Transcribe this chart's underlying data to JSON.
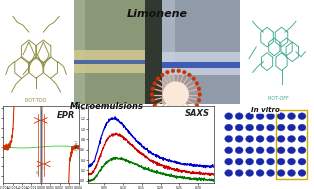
{
  "title_text": "Limonene",
  "microemulsions_text": "Microemulsions",
  "epr_text": "EPR",
  "saxs_text": "SAXS",
  "invitro_text": "In vitro",
  "piot_tdo_text": "PIOT-TDO",
  "piot_off_text": "PIOT-OFF",
  "bg_color": "#ffffff",
  "saxs_colors": [
    "#0000cc",
    "#cc0000",
    "#007700"
  ],
  "epr_color_main": "#cc3300",
  "epr_color_secondary": "#33aaff",
  "epr_color_green": "#33cc33",
  "micelle_outer_color": "#cc3300",
  "micelle_tail_color": "#f0b090",
  "well_plate_color": "#1a2080",
  "well_plate_bg": "#2a3090",
  "well_plate_highlight": "#ccaa00",
  "chem_color": "#8a8a40",
  "chem_color2": "#40a890",
  "photo_bg": "#909880",
  "photo_left_vial": "#b8c8a8",
  "photo_right_vial": "#a0b0c0"
}
